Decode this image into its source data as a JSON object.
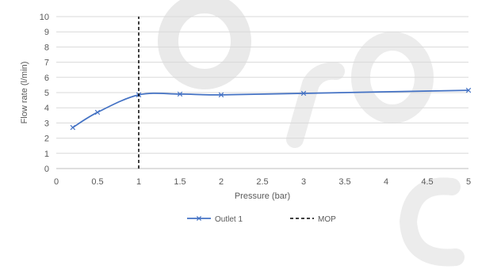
{
  "chart_data": {
    "type": "line",
    "xlabel": "Pressure (bar)",
    "ylabel": "Flow rate (l/min)",
    "xlim": [
      0,
      5
    ],
    "ylim": [
      0,
      10
    ],
    "x_ticks": [
      "0",
      "0.5",
      "1",
      "1.5",
      "2",
      "2.5",
      "3",
      "3.5",
      "4",
      "4.5",
      "5"
    ],
    "y_ticks": [
      "0",
      "1",
      "2",
      "3",
      "4",
      "5",
      "6",
      "7",
      "8",
      "9",
      "10"
    ],
    "grid": "horizontal",
    "legend_position": "bottom",
    "series": [
      {
        "name": "Outlet 1",
        "color": "#4472C4",
        "marker": "x",
        "smooth": true,
        "points": [
          {
            "x": 0.2,
            "y": 2.7
          },
          {
            "x": 0.5,
            "y": 3.7
          },
          {
            "x": 1.0,
            "y": 4.85
          },
          {
            "x": 1.5,
            "y": 4.9
          },
          {
            "x": 2.0,
            "y": 4.85
          },
          {
            "x": 3.0,
            "y": 4.95
          },
          {
            "x": 5.0,
            "y": 5.15
          }
        ]
      },
      {
        "name": "MOP",
        "color": "#000000",
        "style": "dashed",
        "points": [
          {
            "x": 1.0,
            "y": 0
          },
          {
            "x": 1.0,
            "y": 10
          }
        ]
      }
    ]
  }
}
